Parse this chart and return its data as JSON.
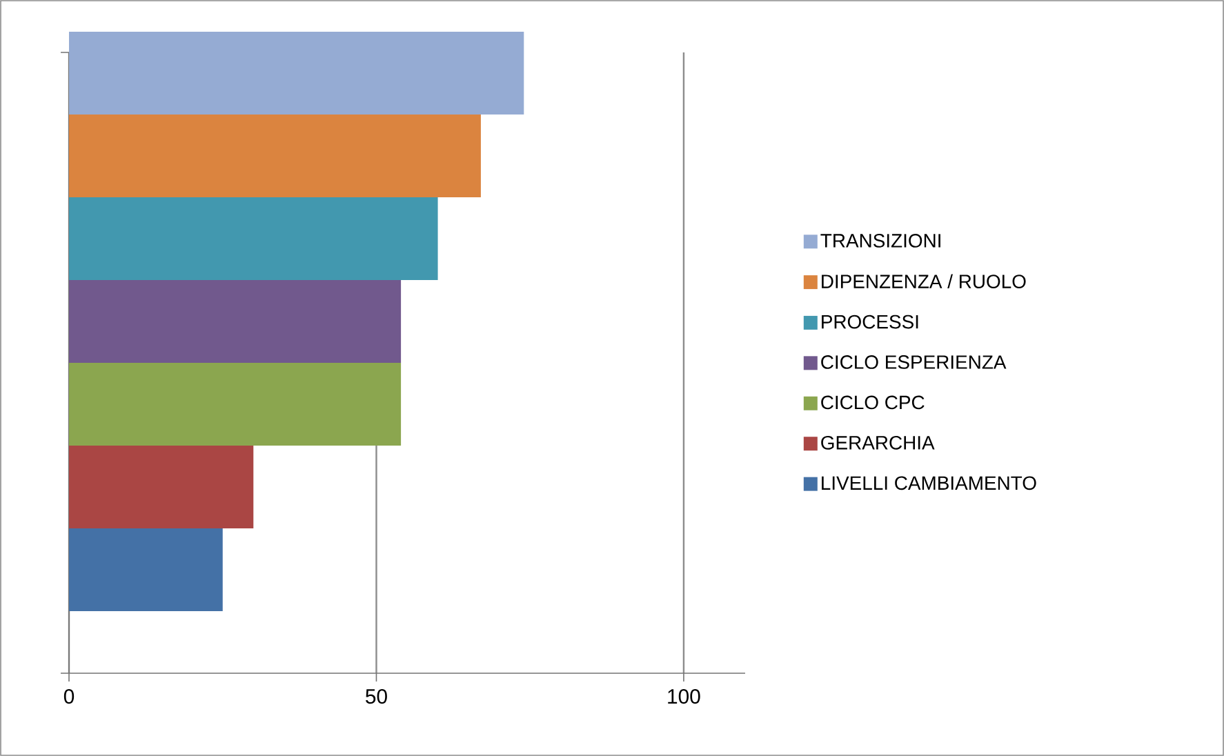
{
  "chart_data": {
    "type": "bar",
    "orientation": "horizontal",
    "categories": [
      null
    ],
    "series": [
      {
        "name": "TRANSIZIONI",
        "color": "#95abd3",
        "values": [
          74
        ]
      },
      {
        "name": "DIPENZENZA / RUOLO",
        "color": "#db843f",
        "values": [
          67
        ]
      },
      {
        "name": "PROCESSI",
        "color": "#4298af",
        "values": [
          60
        ]
      },
      {
        "name": "CICLO ESPERIENZA",
        "color": "#71598d",
        "values": [
          54
        ]
      },
      {
        "name": "CICLO CPC",
        "color": "#8ba64f",
        "values": [
          54
        ]
      },
      {
        "name": "GERARCHIA",
        "color": "#aa4644",
        "values": [
          30
        ]
      },
      {
        "name": "LIVELLI CAMBIAMENTO",
        "color": "#4471a6",
        "values": [
          25
        ]
      }
    ],
    "xlim": [
      0,
      110
    ],
    "xticks": [
      0,
      50,
      100
    ],
    "grid": "x",
    "legend": "right"
  }
}
